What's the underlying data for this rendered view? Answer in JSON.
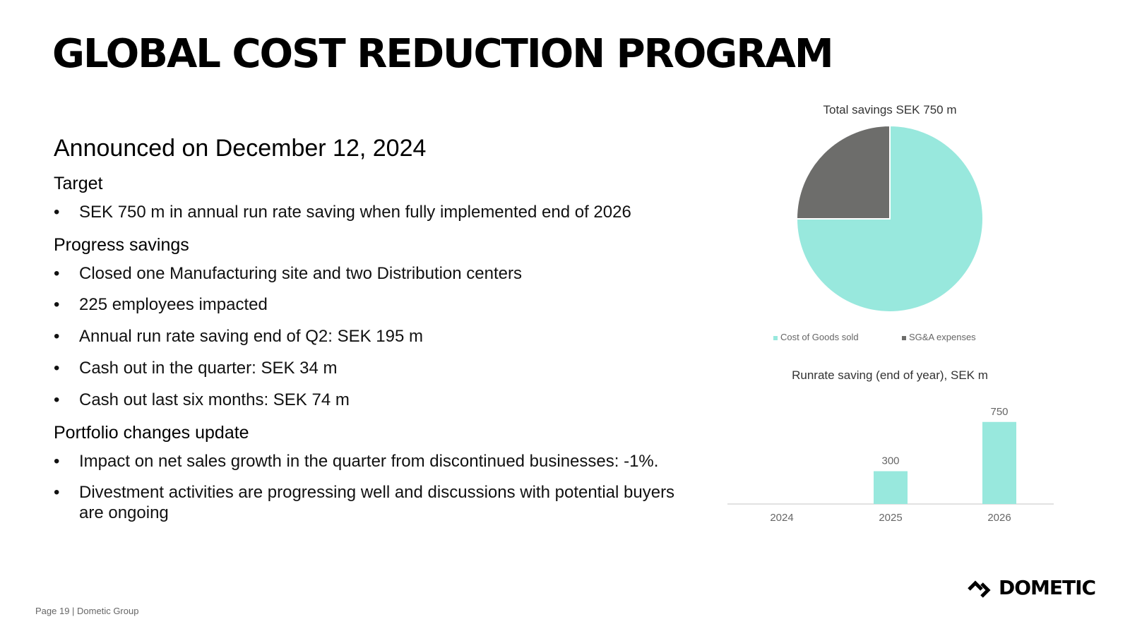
{
  "title": "GLOBAL COST REDUCTION PROGRAM",
  "subtitle": "Announced on December 12, 2024",
  "sections": [
    {
      "heading": "Target",
      "bullets": [
        "SEK 750 m in annual run rate saving when fully implemented end of 2026"
      ]
    },
    {
      "heading": "Progress savings",
      "bullets": [
        "Closed one Manufacturing site and two Distribution centers",
        "225 employees impacted",
        "Annual run rate saving end of Q2: SEK 195 m",
        "Cash out in the quarter: SEK 34 m",
        "Cash out last six months: SEK 74 m"
      ]
    },
    {
      "heading": "Portfolio changes update",
      "bullets": [
        "Impact on net sales growth in the quarter from discontinued businesses: -1%.",
        "Divestment activities are progressing well and discussions with potential buyers are ongoing"
      ]
    }
  ],
  "colors": {
    "teal": "#98e8dd",
    "gray": "#6d6d6b",
    "axis": "#d9d9d9",
    "label": "#666666"
  },
  "chart_data": [
    {
      "type": "pie",
      "title": "Total savings SEK 750 m",
      "categories": [
        "Cost of Goods sold",
        "SG&A expenses"
      ],
      "values": [
        75,
        25
      ],
      "legend": "bottom"
    },
    {
      "type": "bar",
      "title": "Runrate saving (end of year), SEK m",
      "categories": [
        "2024",
        "2025",
        "2026"
      ],
      "values": [
        0,
        300,
        750
      ],
      "data_labels": [
        "",
        "300",
        "750"
      ],
      "ylim": [
        0,
        800
      ],
      "grid": false,
      "xlabel": "",
      "ylabel": ""
    }
  ],
  "footer": "Page 19 | Dometic Group",
  "logo": {
    "text": "DOMETIC"
  }
}
